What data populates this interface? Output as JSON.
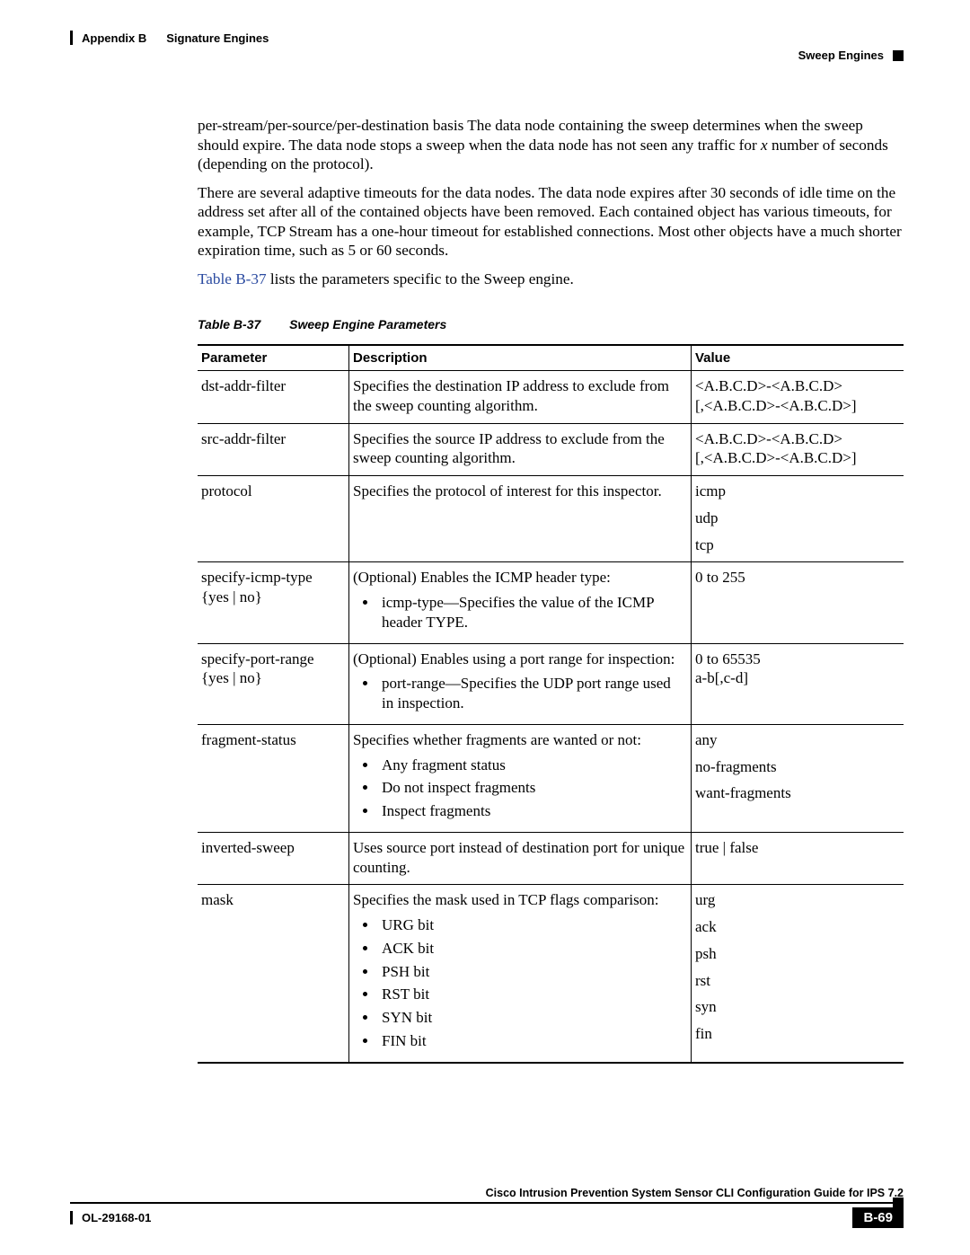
{
  "header": {
    "appendix_label": "Appendix B",
    "appendix_title": "Signature Engines",
    "section_title": "Sweep Engines"
  },
  "paragraphs": {
    "p1_a": "per-stream/per-source/per-destination basis The data node containing the sweep determines when the sweep should expire. The data node stops a sweep when the data node has not seen any traffic for ",
    "p1_ital": "x",
    "p1_b": " number of seconds (depending on the protocol).",
    "p2": "There are several adaptive timeouts for the data nodes. The data node expires after 30 seconds of idle time on the address set after all of the contained objects have been removed. Each contained object has various timeouts, for example, TCP Stream has a one-hour timeout for established connections. Most other objects have a much shorter expiration time, such as 5 or 60 seconds.",
    "p3_link": "Table B-37",
    "p3_rest": " lists the parameters specific to the Sweep engine."
  },
  "table": {
    "caption_num": "Table B-37",
    "caption_title": "Sweep Engine Parameters",
    "headers": {
      "param": "Parameter",
      "desc": "Description",
      "value": "Value"
    },
    "rows": [
      {
        "param": "dst-addr-filter",
        "desc_type": "text",
        "desc": "Specifies the destination IP address to exclude from the sweep counting algorithm.",
        "value_type": "text",
        "value": "<A.B.C.D>-<A.B.C.D>\n[,<A.B.C.D>-<A.B.C.D>]"
      },
      {
        "param": "src-addr-filter",
        "desc_type": "text",
        "desc": "Specifies the source IP address to exclude from the sweep counting algorithm.",
        "value_type": "text",
        "value": "<A.B.C.D>-<A.B.C.D>\n[,<A.B.C.D>-<A.B.C.D>]"
      },
      {
        "param": "protocol",
        "desc_type": "text",
        "desc": "Specifies the protocol of interest for this inspector.",
        "value_type": "lines",
        "value_lines": [
          "icmp",
          "udp",
          "tcp"
        ]
      },
      {
        "param": "specify-icmp-type {yes | no}",
        "desc_type": "intro_bullets",
        "desc_intro": "(Optional) Enables the ICMP header type:",
        "desc_bullets": [
          "icmp-type—Specifies the value of the ICMP header TYPE."
        ],
        "value_type": "text",
        "value": "0 to 255"
      },
      {
        "param": "specify-port-range {yes | no}",
        "desc_type": "intro_bullets",
        "desc_intro": "(Optional) Enables using a port range for inspection:",
        "desc_bullets": [
          "port-range—Specifies the UDP port range used in inspection."
        ],
        "value_type": "text",
        "value": "0 to 65535\na-b[,c-d]"
      },
      {
        "param": "fragment-status",
        "desc_type": "intro_bullets",
        "desc_intro": "Specifies whether fragments are wanted or not:",
        "desc_bullets": [
          "Any fragment status",
          "Do not inspect fragments",
          "Inspect fragments"
        ],
        "value_type": "lines",
        "value_lines": [
          "any",
          "no-fragments",
          "want-fragments"
        ]
      },
      {
        "param": "inverted-sweep",
        "desc_type": "text",
        "desc": "Uses source port instead of destination port for unique counting.",
        "value_type": "text",
        "value": "true | false"
      },
      {
        "param": "mask",
        "desc_type": "intro_bullets",
        "desc_intro": "Specifies the mask used in TCP flags comparison:",
        "desc_bullets": [
          "URG bit",
          "ACK bit",
          "PSH bit",
          "RST bit",
          "SYN bit",
          "FIN bit"
        ],
        "value_type": "lines",
        "value_lines": [
          "urg",
          "ack",
          "psh",
          "rst",
          "syn",
          "fin"
        ]
      }
    ]
  },
  "footer": {
    "doc_title": "Cisco Intrusion Prevention System Sensor CLI Configuration Guide for IPS 7.2",
    "doc_number": "OL-29168-01",
    "page_number": "B-69"
  },
  "colors": {
    "link": "#2a4aa0",
    "text": "#000000",
    "background": "#ffffff"
  }
}
